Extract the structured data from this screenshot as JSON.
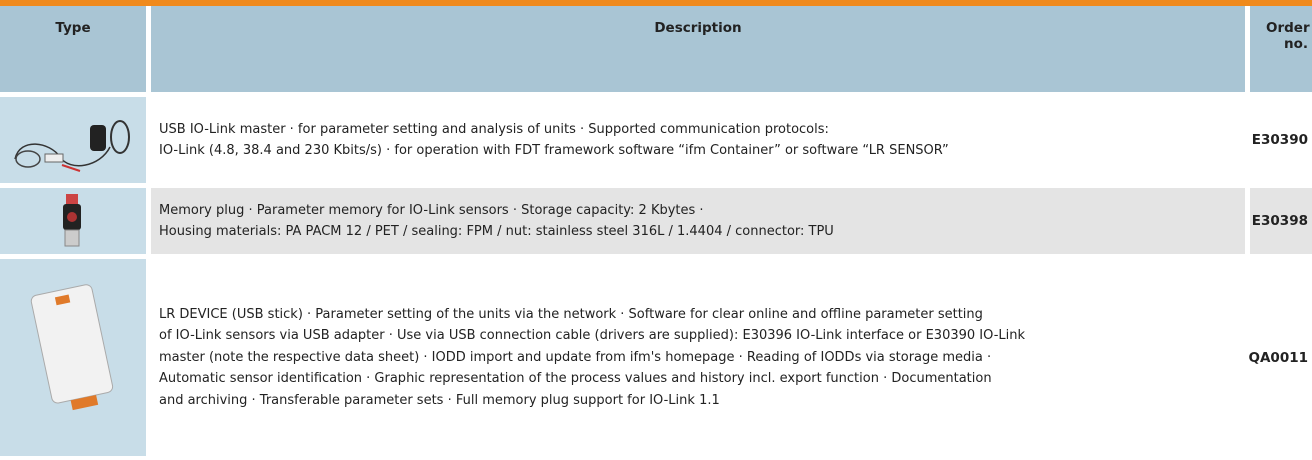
{
  "header": {
    "type": "Type",
    "description": "Description",
    "order_no": "Order no."
  },
  "rows": [
    {
      "description_lines": [
        "USB IO-Link master · for parameter setting and analysis of units · Supported communication protocols:",
        "IO-Link (4.8, 38.4 and 230 Kbits/s) · for operation with FDT framework software “ifm Container” or software “LR SENSOR”"
      ],
      "order_no": "E30390"
    },
    {
      "description_lines": [
        "Memory plug · Parameter memory for IO-Link sensors · Storage capacity: 2 Kbytes ·",
        "Housing materials: PA PACM 12 / PET / sealing: FPM / nut: stainless steel 316L / 1.4404 / connector: TPU"
      ],
      "order_no": "E30398"
    },
    {
      "description_lines": [
        "LR DEVICE (USB stick) · Parameter setting of the units via the network · Software for clear online and offline parameter setting",
        "of IO-Link sensors via USB adapter · Use via USB connection cable (drivers are supplied): E30396 IO-Link interface or E30390 IO-Link",
        "master (note the respective data sheet) · IODD import and update from ifm's homepage · Reading of IODDs via storage media ·",
        "Automatic sensor identification · Graphic representation of the process values and history incl. export function · Documentation",
        "and archiving · Transferable parameter sets · Full memory plug support for IO-Link 1.1"
      ],
      "order_no": "QA0011"
    }
  ]
}
